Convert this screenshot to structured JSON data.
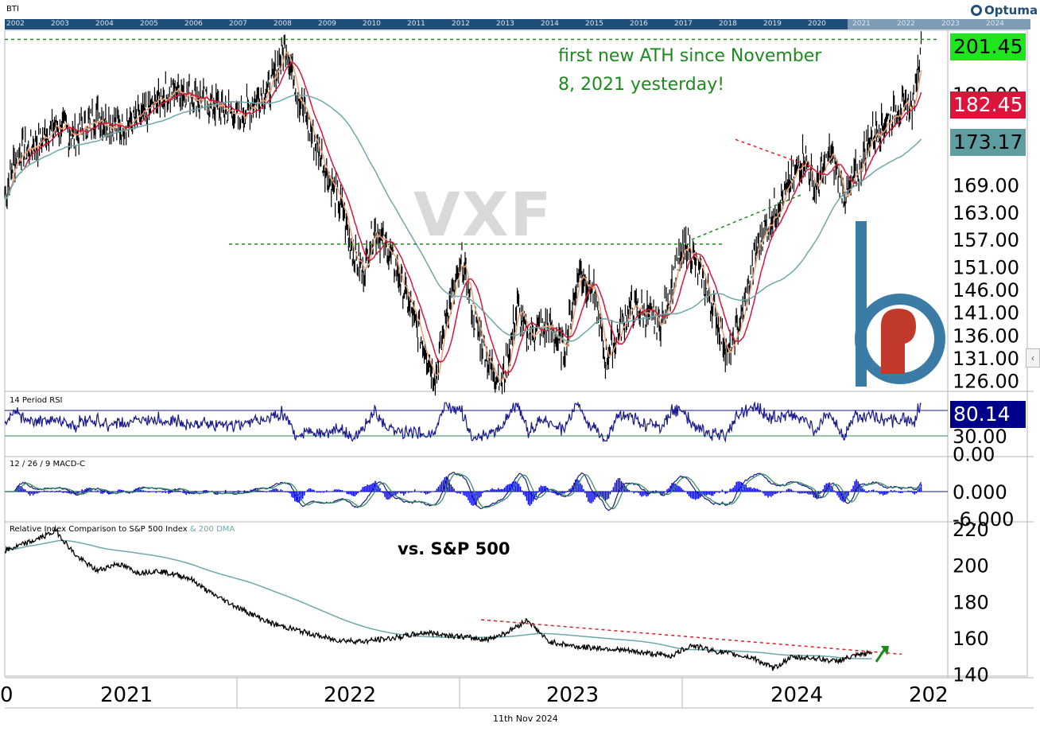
{
  "header": {
    "ticker": "BTI",
    "brand": "Optuma",
    "timeline_years": [
      "2002",
      "2003",
      "2004",
      "2005",
      "2006",
      "2007",
      "2008",
      "2009",
      "2010",
      "2011",
      "2012",
      "2013",
      "2014",
      "2015",
      "2016",
      "2017",
      "2018",
      "2019",
      "2020",
      "2021",
      "2022",
      "2023",
      "2024"
    ]
  },
  "watermark": "VXF",
  "annotations": {
    "ath_line1": "first new ATH since November",
    "ath_line2": "8, 2021 yesterday!",
    "vs_sp": "vs. S&P 500"
  },
  "price_tags": {
    "last": "201.45",
    "ma_fast": "182.45",
    "ma_slow": "173.17",
    "rsi": "80.14"
  },
  "colors": {
    "last_tag": "#1ee61e",
    "ma_fast_tag": "#dc143c",
    "ma_slow_tag": "#5f9ea0",
    "rsi_tag": "#00008b",
    "price_line": "#000000",
    "ma_short": "#e8a27c",
    "ma_mid": "#dc143c",
    "ma_long": "#6fa8a8",
    "rsi_line": "#1a1a8c",
    "macd_hist": "#0000ff",
    "macd_line": "#1a1a8c",
    "macd_signal": "#2e8b57",
    "green_dash": "#1c8a1c",
    "red_dash": "#e02020"
  },
  "panels": {
    "rsi_title": "14 Period RSI",
    "macd_title": "12 / 26 / 9 MACD-C",
    "rel_title": "Relative Index Comparison to S&P 500 Index",
    "rel_title_suffix": "& 200 DMA"
  },
  "footer": {
    "date": "11th Nov 2024"
  },
  "chart_data": [
    {
      "type": "line",
      "panel": "price",
      "ticker": "BTI",
      "y_ticks": [
        "126.00",
        "131.00",
        "136.00",
        "141.00",
        "146.00",
        "151.00",
        "157.00",
        "163.00",
        "169.00",
        "173.17",
        "182.45",
        "189.00",
        "201.45"
      ],
      "x_labels": [
        "2021",
        "2022",
        "2023",
        "2024",
        "202"
      ],
      "ylim": [
        124,
        203
      ],
      "series": [
        {
          "values": [
            [
              2020.55,
              166
            ],
            [
              2020.6,
              175
            ],
            [
              2020.7,
              178
            ],
            [
              2020.8,
              182
            ],
            [
              2020.9,
              180
            ],
            [
              2021.0,
              184
            ],
            [
              2021.1,
              182
            ],
            [
              2021.2,
              183
            ],
            [
              2021.3,
              188
            ],
            [
              2021.4,
              190
            ],
            [
              2021.5,
              188
            ],
            [
              2021.6,
              186
            ],
            [
              2021.7,
              184
            ],
            [
              2021.85,
              191
            ],
            [
              2021.92,
              200
            ],
            [
              2021.98,
              189
            ],
            [
              2022.05,
              180
            ],
            [
              2022.12,
              172
            ],
            [
              2022.2,
              163
            ],
            [
              2022.25,
              154
            ],
            [
              2022.3,
              150
            ],
            [
              2022.35,
              160
            ],
            [
              2022.45,
              152
            ],
            [
              2022.55,
              139
            ],
            [
              2022.6,
              133
            ],
            [
              2022.65,
              127
            ],
            [
              2022.7,
              140
            ],
            [
              2022.78,
              152
            ],
            [
              2022.85,
              138
            ],
            [
              2022.92,
              129
            ],
            [
              2022.98,
              126
            ],
            [
              2023.05,
              142
            ],
            [
              2023.1,
              136
            ],
            [
              2023.2,
              138
            ],
            [
              2023.28,
              133
            ],
            [
              2023.35,
              150
            ],
            [
              2023.42,
              146
            ],
            [
              2023.48,
              131
            ],
            [
              2023.55,
              137
            ],
            [
              2023.6,
              142
            ],
            [
              2023.68,
              141
            ],
            [
              2023.75,
              138
            ],
            [
              2023.82,
              150
            ],
            [
              2023.88,
              156
            ],
            [
              2023.95,
              149
            ],
            [
              2024.02,
              140
            ],
            [
              2024.08,
              131
            ],
            [
              2024.15,
              141
            ],
            [
              2024.22,
              156
            ],
            [
              2024.3,
              163
            ],
            [
              2024.38,
              169
            ],
            [
              2024.45,
              176
            ],
            [
              2024.5,
              168
            ],
            [
              2024.58,
              176
            ],
            [
              2024.65,
              166
            ],
            [
              2024.72,
              173
            ],
            [
              2024.78,
              180
            ],
            [
              2024.85,
              183
            ],
            [
              2024.92,
              186
            ],
            [
              2024.98,
              186
            ],
            [
              2025.0,
              194
            ],
            [
              2025.02,
              201.45
            ]
          ]
        }
      ]
    },
    {
      "type": "line",
      "panel": "rsi",
      "series_label": "14 Period RSI",
      "y_ticks": [
        "30.00",
        "0.00"
      ],
      "last": 80.14
    },
    {
      "type": "bar",
      "panel": "macd",
      "series_label": "12 / 26 / 9 MACD-C",
      "y_ticks": [
        "0.000",
        "-6.000"
      ]
    },
    {
      "type": "line",
      "panel": "relative",
      "series_label": "Relative Index Comparison to S&P 500 Index",
      "y_ticks": [
        "220",
        "200",
        "180",
        "160",
        "140"
      ],
      "ylim": [
        138,
        224
      ],
      "series": [
        {
          "values": [
            [
              2020.55,
              208
            ],
            [
              2020.7,
              214
            ],
            [
              2020.8,
              219
            ],
            [
              2020.9,
              205
            ],
            [
              2021.0,
              197
            ],
            [
              2021.1,
              201
            ],
            [
              2021.2,
              196
            ],
            [
              2021.3,
              197
            ],
            [
              2021.45,
              193
            ],
            [
              2021.55,
              185
            ],
            [
              2021.7,
              176
            ],
            [
              2021.85,
              168
            ],
            [
              2021.95,
              165
            ],
            [
              2022.05,
              162
            ],
            [
              2022.15,
              159
            ],
            [
              2022.3,
              158
            ],
            [
              2022.45,
              160
            ],
            [
              2022.6,
              163
            ],
            [
              2022.75,
              161
            ],
            [
              2022.9,
              159
            ],
            [
              2023.0,
              163
            ],
            [
              2023.1,
              170
            ],
            [
              2023.2,
              158
            ],
            [
              2023.35,
              155
            ],
            [
              2023.5,
              154
            ],
            [
              2023.65,
              152
            ],
            [
              2023.8,
              150
            ],
            [
              2023.9,
              156
            ],
            [
              2024.0,
              153
            ],
            [
              2024.1,
              151
            ],
            [
              2024.2,
              149
            ],
            [
              2024.3,
              143
            ],
            [
              2024.38,
              149
            ],
            [
              2024.5,
              149
            ],
            [
              2024.6,
              147
            ],
            [
              2024.7,
              150
            ],
            [
              2024.78,
              152
            ]
          ]
        }
      ]
    }
  ]
}
